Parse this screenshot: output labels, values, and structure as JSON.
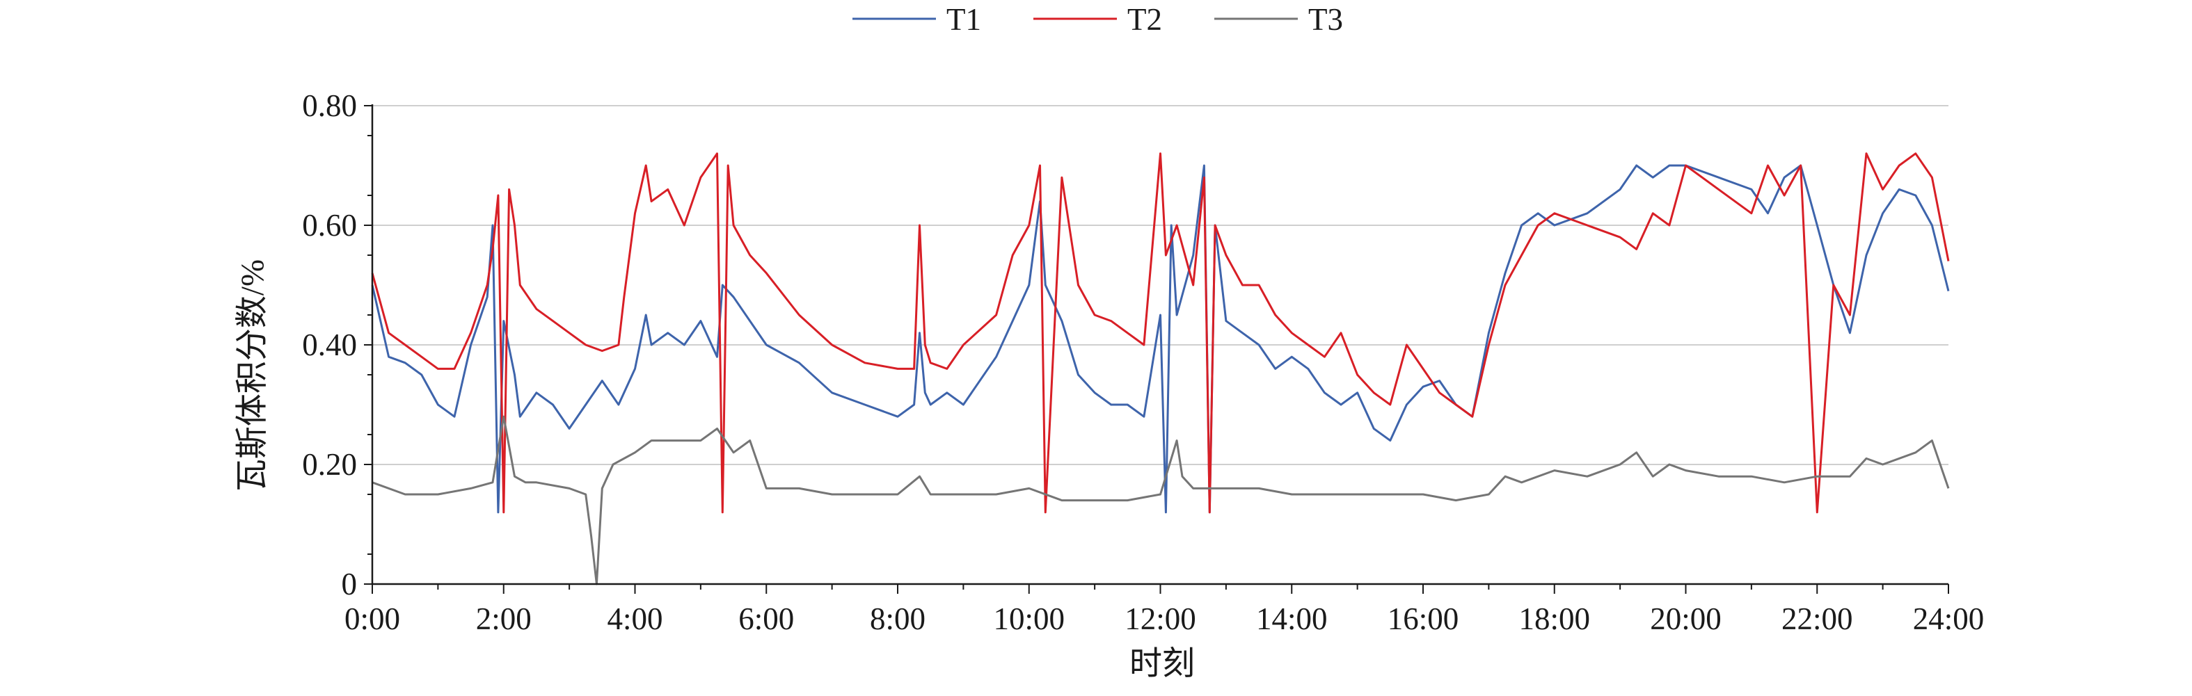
{
  "chart_data": {
    "type": "line",
    "title": "",
    "xlabel": "时刻",
    "ylabel": "瓦斯体积分数/%",
    "x_ticks": [
      "0:00",
      "2:00",
      "4:00",
      "6:00",
      "8:00",
      "10:00",
      "12:00",
      "14:00",
      "16:00",
      "18:00",
      "20:00",
      "22:00",
      "24:00"
    ],
    "y_ticks": [
      "0",
      "0.20",
      "0.40",
      "0.60",
      "0.80"
    ],
    "xlim": [
      "0:00",
      "24:00"
    ],
    "ylim": [
      0,
      0.8
    ],
    "grid": "horizontal",
    "legend": "top-center",
    "series": [
      {
        "name": "T1",
        "color": "#3e64ab",
        "x": [
          "0:00",
          "0:15",
          "0:30",
          "0:45",
          "1:00",
          "1:15",
          "1:30",
          "1:45",
          "1:50",
          "1:55",
          "2:00",
          "2:10",
          "2:15",
          "2:30",
          "2:45",
          "3:00",
          "3:15",
          "3:30",
          "3:45",
          "4:00",
          "4:10",
          "4:15",
          "4:30",
          "4:45",
          "5:00",
          "5:15",
          "5:20",
          "5:30",
          "5:45",
          "6:00",
          "6:30",
          "7:00",
          "7:30",
          "8:00",
          "8:15",
          "8:20",
          "8:25",
          "8:30",
          "8:45",
          "9:00",
          "9:30",
          "9:45",
          "10:00",
          "10:10",
          "10:15",
          "10:30",
          "10:45",
          "11:00",
          "11:15",
          "11:30",
          "11:45",
          "12:00",
          "12:05",
          "12:10",
          "12:15",
          "12:30",
          "12:40",
          "12:45",
          "12:50",
          "13:00",
          "13:15",
          "13:30",
          "13:45",
          "14:00",
          "14:15",
          "14:30",
          "14:45",
          "15:00",
          "15:15",
          "15:30",
          "15:45",
          "16:00",
          "16:15",
          "16:30",
          "16:45",
          "17:00",
          "17:15",
          "17:30",
          "17:45",
          "18:00",
          "18:30",
          "19:00",
          "19:15",
          "19:30",
          "19:45",
          "20:00",
          "20:30",
          "21:00",
          "21:15",
          "21:30",
          "21:45",
          "22:00",
          "22:15",
          "22:30",
          "22:45",
          "23:00",
          "23:15",
          "23:30",
          "23:45",
          "24:00"
        ],
        "y": [
          0.5,
          0.38,
          0.37,
          0.35,
          0.3,
          0.28,
          0.4,
          0.48,
          0.6,
          0.12,
          0.44,
          0.35,
          0.28,
          0.32,
          0.3,
          0.26,
          0.3,
          0.34,
          0.3,
          0.36,
          0.45,
          0.4,
          0.42,
          0.4,
          0.44,
          0.38,
          0.5,
          0.48,
          0.44,
          0.4,
          0.37,
          0.32,
          0.3,
          0.28,
          0.3,
          0.42,
          0.32,
          0.3,
          0.32,
          0.3,
          0.38,
          0.44,
          0.5,
          0.64,
          0.5,
          0.44,
          0.35,
          0.32,
          0.3,
          0.3,
          0.28,
          0.45,
          0.12,
          0.6,
          0.45,
          0.55,
          0.7,
          0.12,
          0.6,
          0.44,
          0.42,
          0.4,
          0.36,
          0.38,
          0.36,
          0.32,
          0.3,
          0.32,
          0.26,
          0.24,
          0.3,
          0.33,
          0.34,
          0.3,
          0.28,
          0.42,
          0.52,
          0.6,
          0.62,
          0.6,
          0.62,
          0.66,
          0.7,
          0.68,
          0.7,
          0.7,
          0.68,
          0.66,
          0.62,
          0.68,
          0.7,
          0.6,
          0.5,
          0.42,
          0.55,
          0.62,
          0.66,
          0.65,
          0.6,
          0.49
        ]
      },
      {
        "name": "T2",
        "color": "#d81f26",
        "x": [
          "0:00",
          "0:15",
          "0:30",
          "0:45",
          "1:00",
          "1:15",
          "1:30",
          "1:45",
          "1:50",
          "1:55",
          "2:00",
          "2:05",
          "2:10",
          "2:15",
          "2:30",
          "2:45",
          "3:00",
          "3:15",
          "3:30",
          "3:45",
          "3:50",
          "4:00",
          "4:10",
          "4:15",
          "4:30",
          "4:45",
          "5:00",
          "5:15",
          "5:20",
          "5:25",
          "5:30",
          "5:45",
          "6:00",
          "6:30",
          "7:00",
          "7:30",
          "8:00",
          "8:15",
          "8:20",
          "8:25",
          "8:30",
          "8:45",
          "9:00",
          "9:30",
          "9:45",
          "10:00",
          "10:10",
          "10:15",
          "10:30",
          "10:45",
          "11:00",
          "11:15",
          "11:30",
          "11:45",
          "12:00",
          "12:05",
          "12:15",
          "12:30",
          "12:40",
          "12:45",
          "12:50",
          "13:00",
          "13:15",
          "13:30",
          "13:45",
          "14:00",
          "14:15",
          "14:30",
          "14:45",
          "15:00",
          "15:15",
          "15:30",
          "15:45",
          "16:00",
          "16:15",
          "16:30",
          "16:45",
          "17:00",
          "17:15",
          "17:30",
          "17:45",
          "18:00",
          "18:30",
          "19:00",
          "19:15",
          "19:30",
          "19:45",
          "20:00",
          "20:30",
          "21:00",
          "21:15",
          "21:30",
          "21:45",
          "22:00",
          "22:15",
          "22:30",
          "22:45",
          "23:00",
          "23:15",
          "23:30",
          "23:45",
          "24:00"
        ],
        "y": [
          0.52,
          0.42,
          0.4,
          0.38,
          0.36,
          0.36,
          0.42,
          0.5,
          0.56,
          0.65,
          0.12,
          0.66,
          0.6,
          0.5,
          0.46,
          0.44,
          0.42,
          0.4,
          0.39,
          0.4,
          0.48,
          0.62,
          0.7,
          0.64,
          0.66,
          0.6,
          0.68,
          0.72,
          0.12,
          0.7,
          0.6,
          0.55,
          0.52,
          0.45,
          0.4,
          0.37,
          0.36,
          0.36,
          0.6,
          0.4,
          0.37,
          0.36,
          0.4,
          0.45,
          0.55,
          0.6,
          0.7,
          0.12,
          0.68,
          0.5,
          0.45,
          0.44,
          0.42,
          0.4,
          0.72,
          0.55,
          0.6,
          0.5,
          0.68,
          0.12,
          0.6,
          0.55,
          0.5,
          0.5,
          0.45,
          0.42,
          0.4,
          0.38,
          0.42,
          0.35,
          0.32,
          0.3,
          0.4,
          0.36,
          0.32,
          0.3,
          0.28,
          0.4,
          0.5,
          0.55,
          0.6,
          0.62,
          0.6,
          0.58,
          0.56,
          0.62,
          0.6,
          0.7,
          0.66,
          0.62,
          0.7,
          0.65,
          0.7,
          0.12,
          0.5,
          0.45,
          0.72,
          0.66,
          0.7,
          0.72,
          0.68,
          0.54
        ]
      },
      {
        "name": "T3",
        "color": "#757575",
        "x": [
          "0:00",
          "0:30",
          "1:00",
          "1:30",
          "1:50",
          "2:00",
          "2:10",
          "2:20",
          "2:30",
          "3:00",
          "3:15",
          "3:20",
          "3:25",
          "3:30",
          "3:40",
          "4:00",
          "4:15",
          "4:30",
          "5:00",
          "5:15",
          "5:30",
          "5:45",
          "6:00",
          "6:30",
          "7:00",
          "7:30",
          "8:00",
          "8:20",
          "8:30",
          "9:00",
          "9:30",
          "10:00",
          "10:30",
          "11:00",
          "11:30",
          "12:00",
          "12:15",
          "12:20",
          "12:30",
          "12:45",
          "13:00",
          "13:30",
          "14:00",
          "14:30",
          "15:00",
          "15:30",
          "16:00",
          "16:30",
          "17:00",
          "17:15",
          "17:30",
          "18:00",
          "18:30",
          "19:00",
          "19:15",
          "19:30",
          "19:45",
          "20:00",
          "20:30",
          "21:00",
          "21:30",
          "22:00",
          "22:30",
          "22:45",
          "23:00",
          "23:30",
          "23:45",
          "24:00"
        ],
        "y": [
          0.17,
          0.15,
          0.15,
          0.16,
          0.17,
          0.28,
          0.18,
          0.17,
          0.17,
          0.16,
          0.15,
          0.08,
          0.0,
          0.16,
          0.2,
          0.22,
          0.24,
          0.24,
          0.24,
          0.26,
          0.22,
          0.24,
          0.16,
          0.16,
          0.15,
          0.15,
          0.15,
          0.18,
          0.15,
          0.15,
          0.15,
          0.16,
          0.14,
          0.14,
          0.14,
          0.15,
          0.24,
          0.18,
          0.16,
          0.16,
          0.16,
          0.16,
          0.15,
          0.15,
          0.15,
          0.15,
          0.15,
          0.14,
          0.15,
          0.18,
          0.17,
          0.19,
          0.18,
          0.2,
          0.22,
          0.18,
          0.2,
          0.19,
          0.18,
          0.18,
          0.17,
          0.18,
          0.18,
          0.21,
          0.2,
          0.22,
          0.24,
          0.16
        ]
      }
    ]
  }
}
